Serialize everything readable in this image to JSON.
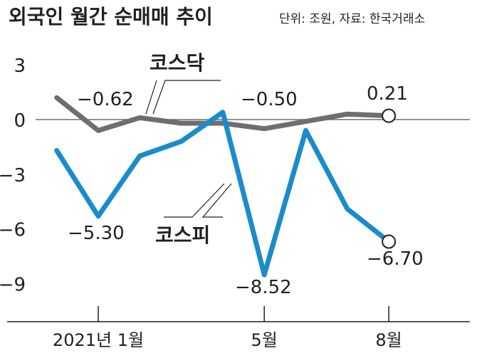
{
  "chart_data": {
    "type": "line",
    "title": "외국인 월간 순매매 추이",
    "unit_note": "단위: 조원, 자료: 한국거래소",
    "x": [
      "2021-01",
      "2021-02",
      "2021-03",
      "2021-04",
      "2021-05",
      "2021-06",
      "2021-07",
      "2021-08"
    ],
    "x_positions": [
      -0.5,
      0,
      1,
      2,
      3,
      4,
      5,
      6,
      7,
      7.5
    ],
    "xtick_labels": [
      {
        "at": 0,
        "label": "2021년 1월"
      },
      {
        "at": 4,
        "label": "5월"
      },
      {
        "at": 7,
        "label": "8월"
      }
    ],
    "yticks": [
      3,
      0,
      -3,
      -6,
      -9
    ],
    "ylim": [
      -11.6,
      3.4
    ],
    "grid": false,
    "series": [
      {
        "name": "코스닥",
        "color": "#6d6e71",
        "points": [
          {
            "x": -1,
            "y": 1.2
          },
          {
            "x": 0,
            "y": -0.6
          },
          {
            "x": 1,
            "y": 0.1
          },
          {
            "x": 2,
            "y": -0.2
          },
          {
            "x": 3,
            "y": -0.2
          },
          {
            "x": 4,
            "y": -0.5
          },
          {
            "x": 5,
            "y": -0.1
          },
          {
            "x": 6,
            "y": 0.3
          },
          {
            "x": 7,
            "y": 0.21
          }
        ]
      },
      {
        "name": "코스피",
        "color": "#1a8ccb",
        "points": [
          {
            "x": -1,
            "y": -1.7
          },
          {
            "x": 0,
            "y": -5.3
          },
          {
            "x": 1,
            "y": -2.0
          },
          {
            "x": 2,
            "y": -1.2
          },
          {
            "x": 3,
            "y": 0.4
          },
          {
            "x": 4,
            "y": -8.52
          },
          {
            "x": 5,
            "y": -0.6
          },
          {
            "x": 6,
            "y": -4.9
          },
          {
            "x": 7,
            "y": -6.7
          }
        ]
      }
    ],
    "data_labels": [
      {
        "text": "-0.62",
        "series": "코스닥"
      },
      {
        "text": "-0.50",
        "series": "코스닥"
      },
      {
        "text": "0.21",
        "series": "코스닥"
      },
      {
        "text": "-5.30",
        "series": "코스피"
      },
      {
        "text": "-8.52",
        "series": "코스피"
      },
      {
        "text": "-6.70",
        "series": "코스피"
      }
    ]
  }
}
